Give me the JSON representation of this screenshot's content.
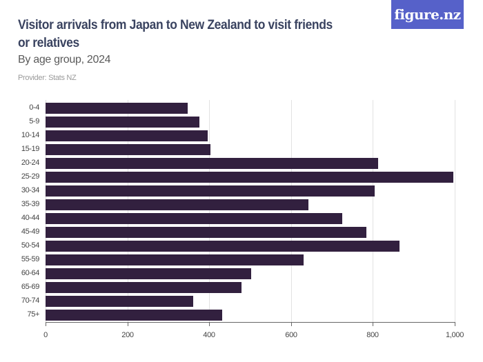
{
  "header": {
    "title": "Visitor arrivals from Japan to New Zealand to visit friends or relatives",
    "subtitle": "By age group, 2024",
    "provider": "Provider: Stats NZ",
    "logo": "figure.nz"
  },
  "colors": {
    "bar": "#32203f",
    "logo_bg": "#5661c9",
    "title": "#3a4360"
  },
  "chart_data": {
    "type": "bar",
    "orientation": "horizontal",
    "title": "Visitor arrivals from Japan to New Zealand to visit friends or relatives",
    "subtitle": "By age group, 2024",
    "xlabel": "",
    "ylabel": "",
    "xlim": [
      0,
      1000
    ],
    "x_ticks": [
      "0",
      "200",
      "400",
      "600",
      "800",
      "1,000"
    ],
    "grid": true,
    "categories": [
      "0-4",
      "5-9",
      "10-14",
      "15-19",
      "20-24",
      "25-29",
      "30-34",
      "35-39",
      "40-44",
      "45-49",
      "50-54",
      "55-59",
      "60-64",
      "65-69",
      "70-74",
      "75+"
    ],
    "values": [
      348,
      376,
      397,
      403,
      813,
      997,
      804,
      642,
      725,
      784,
      865,
      631,
      503,
      479,
      361,
      432
    ]
  }
}
